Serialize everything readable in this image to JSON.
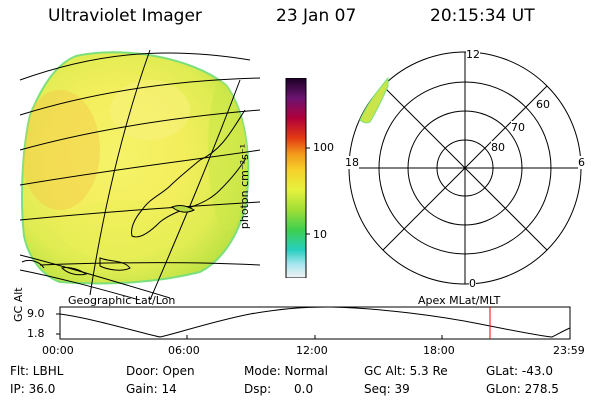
{
  "header": {
    "title": "Ultraviolet Imager",
    "date": "23 Jan 07",
    "time": "20:15:34 UT"
  },
  "colorbar": {
    "unit_label": "photon cm⁻²s⁻¹",
    "ticks": [
      "100",
      "10"
    ]
  },
  "polar_plot": {
    "mlt_labels": {
      "top": "12",
      "left": "18",
      "right": "6",
      "bottom": "0"
    },
    "lat_labels": [
      "60",
      "70",
      "80"
    ],
    "caption": "Apex MLat/MLT"
  },
  "geo_map": {
    "caption": "Geographic Lat/Lon"
  },
  "altitude_plot": {
    "ylabel": "GC Alt",
    "yticks": [
      "9.0",
      "1.8"
    ],
    "xticks": [
      "00:00",
      "06:00",
      "12:00",
      "18:00",
      "23:59"
    ],
    "marker_color": "#ff0000"
  },
  "info": {
    "filter": "Flt: LBHL",
    "ip": "IP: 36.0",
    "door": "Door: Open",
    "gain": "Gain: 14",
    "mode": "Mode: Normal",
    "dsp": "Dsp:      0.0",
    "gcalt": "GC Alt: 5.3 Re",
    "seq": "Seq: 39",
    "glat": "GLat: -43.0",
    "glon": "GLon: 278.5"
  }
}
